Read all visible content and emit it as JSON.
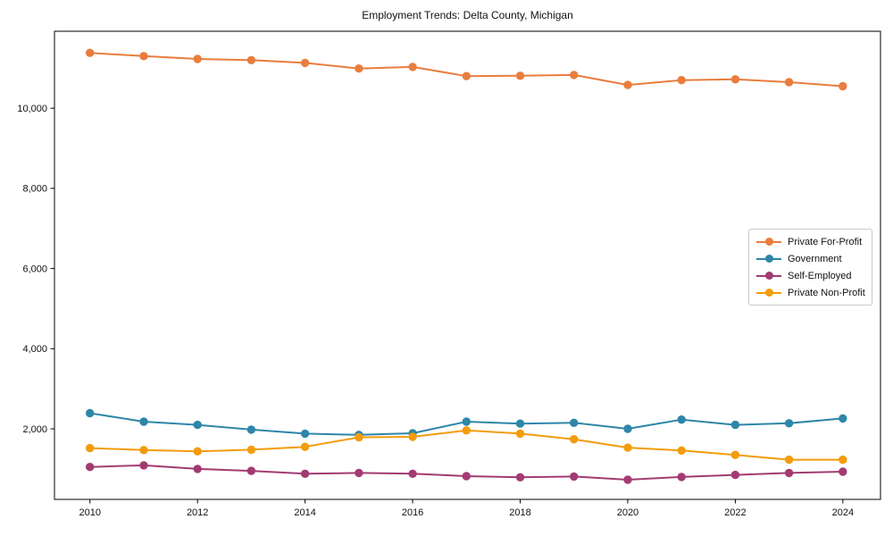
{
  "chart_data": {
    "type": "line",
    "title": "Employment Trends: Delta County, Michigan",
    "xlabel": "",
    "ylabel": "",
    "x": [
      2010,
      2011,
      2012,
      2013,
      2014,
      2015,
      2016,
      2017,
      2018,
      2019,
      2020,
      2021,
      2022,
      2023,
      2024
    ],
    "series": [
      {
        "name": "Private For-Profit",
        "color": "#E87D3E",
        "values": [
          11380,
          11300,
          11230,
          11200,
          11130,
          10990,
          11030,
          10800,
          10810,
          10830,
          10580,
          10700,
          10720,
          10650,
          10550
        ]
      },
      {
        "name": "Government",
        "color": "#2E86A8",
        "values": [
          2390,
          2180,
          2100,
          1980,
          1880,
          1850,
          1890,
          2180,
          2130,
          2150,
          2000,
          2230,
          2100,
          2140,
          2260
        ]
      },
      {
        "name": "Self-Employed",
        "color": "#A23B72",
        "values": [
          1050,
          1090,
          1000,
          950,
          880,
          900,
          880,
          820,
          790,
          810,
          730,
          800,
          850,
          900,
          930
        ]
      },
      {
        "name": "Private Non-Profit",
        "color": "#F39C0C",
        "values": [
          1520,
          1470,
          1440,
          1480,
          1550,
          1790,
          1800,
          1960,
          1880,
          1740,
          1530,
          1460,
          1350,
          1230,
          1230
        ]
      }
    ],
    "x_ticks": [
      2010,
      2012,
      2014,
      2016,
      2018,
      2020,
      2022,
      2024
    ],
    "y_ticks": [
      2000,
      4000,
      6000,
      8000,
      10000
    ],
    "y_tick_labels": [
      "2,000",
      "4,000",
      "6,000",
      "8,000",
      "10,000"
    ],
    "xlim": [
      2009.34,
      2024.7
    ],
    "ylim": [
      240,
      11920
    ],
    "grid": false,
    "legend_position": "center-right",
    "axis_color": "#000000",
    "marker": "circle"
  }
}
